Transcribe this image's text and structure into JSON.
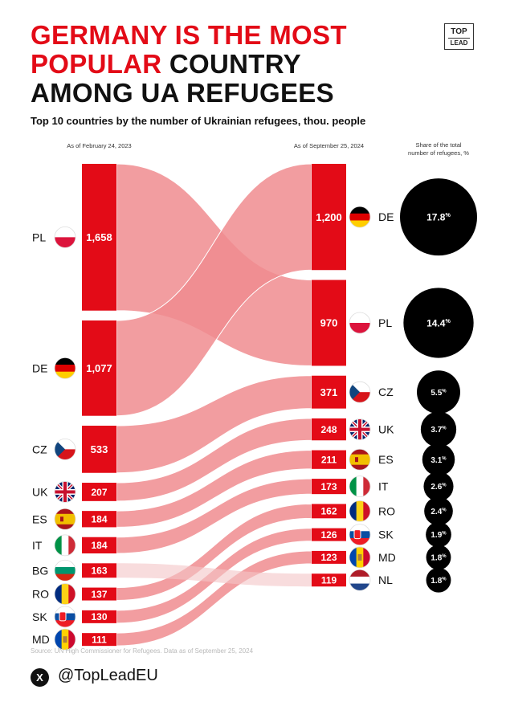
{
  "title": {
    "line1": "GERMANY IS THE MOST",
    "line2_red": "POPULAR",
    "line2_black": " COUNTRY",
    "line3": "AMONG UA REFUGEES"
  },
  "logo": {
    "top": "TOP",
    "bottom": "LEAD"
  },
  "subtitle": "Top 10 countries by the number of Ukrainian refugees, thou. people",
  "colors": {
    "accent": "#e30b17",
    "flow": "#f08c8f",
    "share_circle": "#000000"
  },
  "chart_data": {
    "type": "sankey",
    "left_header": "As of February 24, 2023",
    "right_header": "As of September 25, 2024",
    "share_header": "Share of the total number of refugees, %",
    "left": [
      {
        "code": "PL",
        "value": 1658,
        "label": "1,658",
        "flag": "poland-flag"
      },
      {
        "code": "DE",
        "value": 1077,
        "label": "1,077",
        "flag": "germany-flag"
      },
      {
        "code": "CZ",
        "value": 533,
        "label": "533",
        "flag": "czechia-flag"
      },
      {
        "code": "UK",
        "value": 207,
        "label": "207",
        "flag": "uk-flag"
      },
      {
        "code": "ES",
        "value": 184,
        "label": "184",
        "flag": "spain-flag"
      },
      {
        "code": "IT",
        "value": 184,
        "label": "184",
        "flag": "italy-flag"
      },
      {
        "code": "BG",
        "value": 163,
        "label": "163",
        "flag": "bulgaria-flag"
      },
      {
        "code": "RO",
        "value": 137,
        "label": "137",
        "flag": "romania-flag"
      },
      {
        "code": "SK",
        "value": 130,
        "label": "130",
        "flag": "slovakia-flag"
      },
      {
        "code": "MD",
        "value": 111,
        "label": "111",
        "flag": "moldova-flag"
      }
    ],
    "right": [
      {
        "code": "DE",
        "value": 1200,
        "label": "1,200",
        "flag": "germany-flag",
        "share": 17.8,
        "share_label": "17.8%"
      },
      {
        "code": "PL",
        "value": 970,
        "label": "970",
        "flag": "poland-flag",
        "share": 14.4,
        "share_label": "14.4%"
      },
      {
        "code": "CZ",
        "value": 371,
        "label": "371",
        "flag": "czechia-flag",
        "share": 5.5,
        "share_label": "5.5%"
      },
      {
        "code": "UK",
        "value": 248,
        "label": "248",
        "flag": "uk-flag",
        "share": 3.7,
        "share_label": "3.7%"
      },
      {
        "code": "ES",
        "value": 211,
        "label": "211",
        "flag": "spain-flag",
        "share": 3.1,
        "share_label": "3.1%"
      },
      {
        "code": "IT",
        "value": 173,
        "label": "173",
        "flag": "italy-flag",
        "share": 2.6,
        "share_label": "2.6%"
      },
      {
        "code": "RO",
        "value": 162,
        "label": "162",
        "flag": "romania-flag",
        "share": 2.4,
        "share_label": "2.4%"
      },
      {
        "code": "SK",
        "value": 126,
        "label": "126",
        "flag": "slovakia-flag",
        "share": 1.9,
        "share_label": "1.9%"
      },
      {
        "code": "MD",
        "value": 123,
        "label": "123",
        "flag": "moldova-flag",
        "share": 1.8,
        "share_label": "1.8%"
      },
      {
        "code": "NL",
        "value": 119,
        "label": "119",
        "flag": "netherlands-flag",
        "share": 1.8,
        "share_label": "1.8%"
      }
    ]
  },
  "footer": {
    "source": "Source: UN High Commissioner for Refugees. Data as of September 25, 2024",
    "x_icon": "x-logo-icon",
    "handle": "@TopLeadEU"
  }
}
